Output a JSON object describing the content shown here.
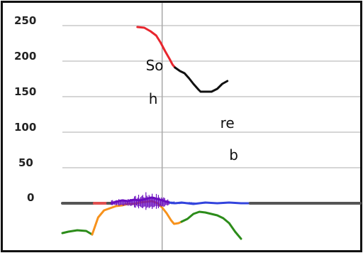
{
  "chart_data": {
    "type": "line",
    "ylim": [
      -50,
      258
    ],
    "xlim": [
      0,
      100
    ],
    "y_ticks": [
      {
        "value": 250,
        "label": "250"
      },
      {
        "value": 200,
        "label": "200"
      },
      {
        "value": 150,
        "label": "150"
      },
      {
        "value": 100,
        "label": "100"
      },
      {
        "value": 50,
        "label": "50"
      },
      {
        "value": 0,
        "label": "0"
      }
    ],
    "x_gridlines": [
      33.5
    ],
    "grid": true,
    "annotations": [
      {
        "text": "So",
        "x": 28,
        "y": 187
      },
      {
        "text": "h",
        "x": 29,
        "y": 140
      },
      {
        "text": "re",
        "x": 53,
        "y": 106
      },
      {
        "text": "b",
        "x": 56,
        "y": 61
      }
    ],
    "series": [
      {
        "color": "#e8262e",
        "points": [
          [
            25.2,
            248
          ],
          [
            27.5,
            247
          ],
          [
            29.6,
            242
          ],
          [
            31.5,
            236
          ],
          [
            33,
            226
          ],
          [
            34.5,
            214
          ],
          [
            36,
            203
          ],
          [
            37,
            195
          ],
          [
            37.8,
            191
          ]
        ]
      },
      {
        "color": "#111111",
        "points": [
          [
            37.8,
            191
          ],
          [
            39.5,
            186
          ],
          [
            41,
            183
          ],
          [
            42.5,
            176
          ],
          [
            44,
            168
          ],
          [
            45.7,
            160
          ],
          [
            46.4,
            157
          ],
          [
            48.3,
            157
          ],
          [
            50.1,
            157
          ],
          [
            52,
            161
          ],
          [
            53.7,
            168
          ],
          [
            55.4,
            172
          ]
        ]
      },
      {
        "color": "#555555",
        "points": [
          [
            0,
            0
          ],
          [
            10.7,
            0
          ]
        ]
      },
      {
        "color": "#e05050",
        "points": [
          [
            10.7,
            0
          ],
          [
            15.2,
            0
          ]
        ]
      },
      {
        "color": "#555555",
        "points": [
          [
            15.2,
            0
          ],
          [
            16.5,
            0
          ]
        ]
      },
      {
        "color": "#6a0dbf",
        "points": [
          [
            16.5,
            0
          ],
          [
            18,
            2
          ],
          [
            20,
            4
          ],
          [
            22,
            3
          ],
          [
            24,
            5
          ],
          [
            26,
            4
          ],
          [
            28,
            6
          ],
          [
            30,
            8
          ],
          [
            32,
            6
          ],
          [
            33.5,
            4
          ],
          [
            35,
            2
          ],
          [
            36,
            1
          ]
        ]
      },
      {
        "color": "#3344dd",
        "points": [
          [
            36,
            1
          ],
          [
            38,
            0
          ],
          [
            40,
            1
          ],
          [
            44,
            -1
          ],
          [
            48,
            1
          ],
          [
            52,
            0
          ],
          [
            56,
            1
          ],
          [
            60,
            0
          ],
          [
            63,
            0
          ]
        ]
      },
      {
        "color": "#555555",
        "points": [
          [
            63,
            0
          ],
          [
            100,
            0
          ]
        ]
      },
      {
        "color": "#2c8c1a",
        "points": [
          [
            0,
            -42
          ],
          [
            2,
            -40
          ],
          [
            5,
            -38
          ],
          [
            8,
            -39
          ],
          [
            10,
            -44
          ]
        ]
      },
      {
        "color": "#f7921c",
        "points": [
          [
            10,
            -44
          ],
          [
            12,
            -20
          ],
          [
            14,
            -10
          ],
          [
            16,
            -7
          ],
          [
            18,
            -4
          ],
          [
            20,
            -3
          ],
          [
            22,
            -1
          ],
          [
            24,
            -1
          ],
          [
            26,
            1
          ],
          [
            28,
            2
          ],
          [
            30,
            3
          ],
          [
            32,
            0
          ],
          [
            33.5,
            -6
          ],
          [
            35,
            -14
          ],
          [
            36.5,
            -24
          ],
          [
            37.5,
            -29
          ],
          [
            39,
            -28
          ],
          [
            40,
            -26
          ]
        ]
      },
      {
        "color": "#2c8c1a",
        "points": [
          [
            40,
            -26
          ],
          [
            42,
            -22
          ],
          [
            44,
            -15
          ],
          [
            46,
            -12
          ],
          [
            48,
            -13
          ],
          [
            50,
            -15
          ],
          [
            52,
            -17
          ],
          [
            54,
            -21
          ],
          [
            56,
            -28
          ],
          [
            58,
            -40
          ],
          [
            60,
            -50
          ]
        ]
      }
    ]
  },
  "ui": {
    "background": "#ffffff",
    "border_color": "#111111",
    "gridline_color": "#c8c8c8",
    "vertical_line_color": "#a8a8a8",
    "zero_line_color": "#555555"
  }
}
